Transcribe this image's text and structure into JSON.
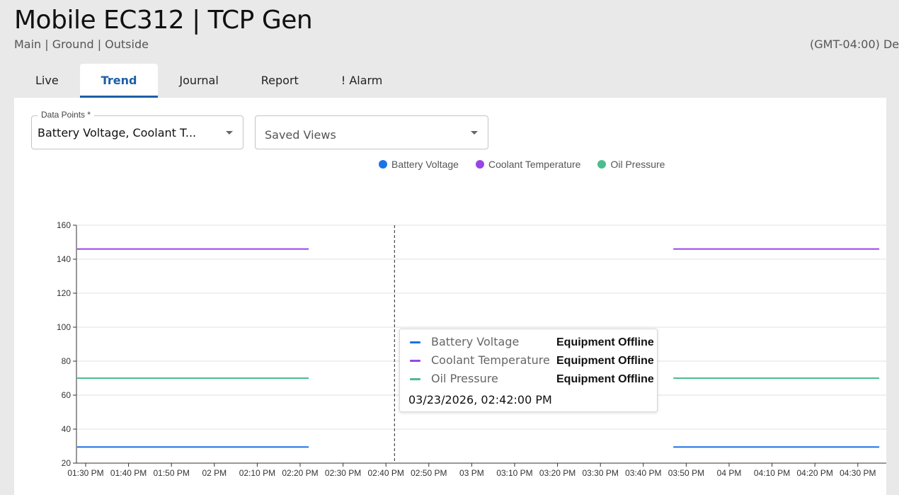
{
  "header": {
    "title": "Mobile EC312 | TCP Gen",
    "breadcrumb": "Main | Ground | Outside",
    "timezone": "(GMT-04:00) De"
  },
  "tabs": [
    {
      "label": "Live",
      "active": false
    },
    {
      "label": "Trend",
      "active": true
    },
    {
      "label": "Journal",
      "active": false
    },
    {
      "label": "Report",
      "active": false
    },
    {
      "label": "! Alarm",
      "active": false
    }
  ],
  "controls": {
    "data_points": {
      "label": "Data Points *",
      "value": "Battery Voltage, Coolant T..."
    },
    "saved_views": {
      "placeholder": "Saved Views"
    }
  },
  "colors": {
    "battery_voltage": "#1a73e8",
    "coolant_temperature": "#9845e8",
    "oil_pressure": "#4bbd8e",
    "active_tab": "#1b5fa8"
  },
  "tooltip": {
    "rows": [
      {
        "name": "Battery Voltage",
        "value": "Equipment Offline"
      },
      {
        "name": "Coolant Temperature",
        "value": "Equipment Offline"
      },
      {
        "name": "Oil Pressure",
        "value": "Equipment Offline"
      }
    ],
    "timestamp": "03/23/2026, 02:42:00 PM"
  },
  "chart_data": {
    "type": "line",
    "title": "",
    "xlabel": "",
    "ylabel": "",
    "ylim": [
      20,
      160
    ],
    "yticks": [
      20,
      40,
      60,
      80,
      100,
      120,
      140,
      160
    ],
    "grid": true,
    "legend_position": "top-center",
    "x_tick_labels": [
      "01:30 PM",
      "01:40 PM",
      "01:50 PM",
      "02 PM",
      "02:10 PM",
      "02:20 PM",
      "02:30 PM",
      "02:40 PM",
      "02:50 PM",
      "03 PM",
      "03:10 PM",
      "03:20 PM",
      "03:30 PM",
      "03:40 PM",
      "03:50 PM",
      "04 PM",
      "04:10 PM",
      "04:20 PM",
      "04:30 PM"
    ],
    "cursor_time": "02:42 PM",
    "series": [
      {
        "name": "Battery Voltage",
        "color": "#1a73e8",
        "segments": [
          {
            "start": "01:28 PM",
            "end": "02:22 PM",
            "value": 29.5
          },
          {
            "start": "03:47 PM",
            "end": "04:35 PM",
            "value": 29.5
          }
        ]
      },
      {
        "name": "Coolant Temperature",
        "color": "#9845e8",
        "segments": [
          {
            "start": "01:28 PM",
            "end": "02:22 PM",
            "value": 146
          },
          {
            "start": "03:47 PM",
            "end": "04:35 PM",
            "value": 146
          }
        ]
      },
      {
        "name": "Oil Pressure",
        "color": "#4bbd8e",
        "segments": [
          {
            "start": "01:28 PM",
            "end": "02:22 PM",
            "value": 70
          },
          {
            "start": "03:47 PM",
            "end": "04:35 PM",
            "value": 70
          }
        ]
      }
    ]
  }
}
